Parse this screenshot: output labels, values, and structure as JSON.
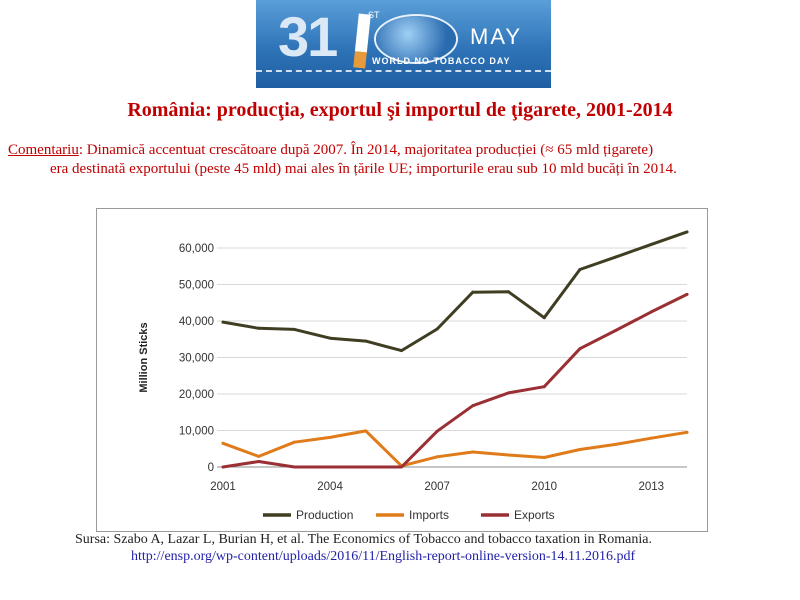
{
  "banner": {
    "day": "31",
    "suffix": "ST",
    "month": "MAY",
    "tagline": "WORLD NO TOBACCO DAY"
  },
  "title": "România: producţia, exportul şi importul de ţigarete, 2001-2014",
  "comment": {
    "label": "Comentariu",
    "line1": ": Dinamică accentuat crescătoare după 2007. În 2014, majoritatea producției (≈ 65 mld țigarete)",
    "line2": "era destinată exportului (peste 45 mld) mai ales în țările UE; importurile erau sub 10 mld bucăți în 2014."
  },
  "source": {
    "line1": "Sursa: Szabo A, Lazar L, Burian H, et al. The Economics of Tobacco and tobacco taxation in Romania.",
    "url": "http://ensp.org/wp-content/uploads/2016/11/English-report-online-version-14.11.2016.pdf"
  },
  "chart_data": {
    "type": "line",
    "title": "",
    "xlabel": "",
    "ylabel": "Million Sticks",
    "x": [
      2001,
      2002,
      2003,
      2004,
      2005,
      2006,
      2007,
      2008,
      2009,
      2010,
      2011,
      2012,
      2013,
      2014
    ],
    "xticks": [
      2001,
      2004,
      2007,
      2010,
      2013
    ],
    "xtick_labels": [
      "2001",
      "2004",
      "2007",
      "2010",
      "2013"
    ],
    "xlim": [
      2001,
      2014
    ],
    "ylim": [
      0,
      60000
    ],
    "yticks": [
      0,
      10000,
      20000,
      30000,
      40000,
      50000,
      60000
    ],
    "ytick_labels": [
      "0",
      "10,000",
      "20,000",
      "30,000",
      "40,000",
      "50,000",
      "60,000"
    ],
    "legend_position": "bottom",
    "grid": "horizontal",
    "series": [
      {
        "name": "Production",
        "color": "#403e22",
        "values": [
          39700,
          38000,
          37700,
          35300,
          34500,
          31900,
          37800,
          47900,
          48000,
          40900,
          54100,
          57500,
          61000,
          64400
        ]
      },
      {
        "name": "Imports",
        "color": "#e07b1a",
        "values": [
          6500,
          2900,
          6800,
          8100,
          9900,
          300,
          2800,
          4100,
          3300,
          2600,
          4800,
          6200,
          7900,
          9500
        ]
      },
      {
        "name": "Exports",
        "color": "#9a2f34",
        "values": [
          0,
          1500,
          0,
          0,
          0,
          0,
          9800,
          16800,
          20300,
          22000,
          32400,
          37400,
          42500,
          47300
        ]
      }
    ]
  }
}
